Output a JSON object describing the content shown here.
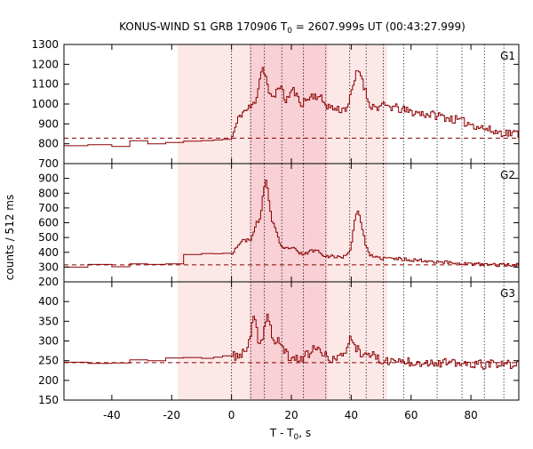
{
  "chart_data": {
    "type": "line",
    "title": "KONUS-WIND S1 GRB 170906 T",
    "title_sub": "0",
    "title_rest": " = 2607.999s UT (00:43:27.999)",
    "xlabel_main": "T - T",
    "xlabel_sub": "0",
    "xlabel_rest": ", s",
    "ylabel": "counts / 512 ms",
    "xlim": [
      -56,
      96
    ],
    "x_ticks": [
      -40,
      -20,
      0,
      20,
      40,
      60,
      80
    ],
    "x_tick_labels": [
      "-40",
      "-20",
      "0",
      "20",
      "40",
      "60",
      "80"
    ],
    "colors": {
      "line": "#8b0000",
      "background_dashed": "#8b0000",
      "shade_light": "#fde8e8",
      "shade_dark": "#f8d0d5",
      "vline": "#000000"
    },
    "shaded_intervals": [
      {
        "from": -18,
        "to": 52,
        "tone": "light"
      },
      {
        "from": 6,
        "to": 32,
        "tone": "dark"
      }
    ],
    "vertical_lines": [
      0,
      6.4,
      11.0,
      16.8,
      24.0,
      31.5,
      39.5,
      45.0,
      50.7,
      57.5,
      68.7,
      77.0,
      84.5,
      91.0
    ],
    "panels": [
      {
        "label": "G1",
        "ylim": [
          700,
          1300
        ],
        "yticks": [
          700,
          800,
          900,
          1000,
          1100,
          1200,
          1300
        ],
        "y_tick_labels": [
          "700",
          "800",
          "900",
          "1000",
          "1100",
          "1200",
          "1300"
        ],
        "background": 828,
        "seed": 11,
        "noise": 22,
        "step_after_zero": 150,
        "hist": [
          [
            -56,
            790
          ],
          [
            -48,
            795
          ],
          [
            -40,
            786
          ],
          [
            -34,
            815
          ],
          [
            -28,
            800
          ],
          [
            -22,
            806
          ],
          [
            -16,
            813
          ],
          [
            -10,
            816
          ],
          [
            -6,
            819
          ],
          [
            -3,
            822
          ]
        ],
        "base": [
          [
            0,
            825
          ],
          [
            3,
            950
          ],
          [
            6,
            980
          ],
          [
            10,
            1010
          ],
          [
            14,
            1010
          ],
          [
            20,
            1000
          ],
          [
            30,
            980
          ],
          [
            38,
            970
          ],
          [
            46,
            980
          ],
          [
            52,
            990
          ],
          [
            60,
            960
          ],
          [
            70,
            940
          ],
          [
            80,
            900
          ],
          [
            88,
            860
          ],
          [
            96,
            850
          ]
        ],
        "peaks": [
          [
            10.5,
            170,
            1.3
          ],
          [
            16,
            90,
            1.0
          ],
          [
            20.5,
            70,
            1.2
          ],
          [
            28,
            60,
            2.5
          ],
          [
            42.5,
            190,
            1.8
          ]
        ]
      },
      {
        "label": "G2",
        "ylim": [
          200,
          1000
        ],
        "yticks": [
          200,
          300,
          400,
          500,
          600,
          700,
          800,
          900
        ],
        "y_tick_labels": [
          "200",
          "300",
          "400",
          "500",
          "600",
          "700",
          "800",
          "900"
        ],
        "background": 315,
        "seed": 23,
        "noise": 12,
        "step_after_zero": 180,
        "hist": [
          [
            -56,
            300
          ],
          [
            -48,
            318
          ],
          [
            -40,
            302
          ],
          [
            -34,
            322
          ],
          [
            -28,
            318
          ],
          [
            -22,
            322
          ],
          [
            -16,
            385
          ],
          [
            -10,
            392
          ],
          [
            -6,
            390
          ],
          [
            -3,
            393
          ]
        ],
        "base": [
          [
            0,
            390
          ],
          [
            3,
            470
          ],
          [
            6,
            490
          ],
          [
            10,
            470
          ],
          [
            14,
            440
          ],
          [
            20,
            390
          ],
          [
            30,
            370
          ],
          [
            38,
            370
          ],
          [
            46,
            360
          ],
          [
            52,
            360
          ],
          [
            60,
            350
          ],
          [
            70,
            335
          ],
          [
            80,
            320
          ],
          [
            88,
            315
          ],
          [
            96,
            315
          ]
        ],
        "peaks": [
          [
            11.5,
            420,
            1.2
          ],
          [
            8.5,
            110,
            0.8
          ],
          [
            14.5,
            120,
            1.0
          ],
          [
            20,
            40,
            1.5
          ],
          [
            28,
            40,
            2.0
          ],
          [
            42,
            280,
            1.3
          ],
          [
            44,
            80,
            1.5
          ]
        ]
      },
      {
        "label": "G3",
        "ylim": [
          150,
          450
        ],
        "yticks": [
          150,
          200,
          250,
          300,
          350,
          400
        ],
        "y_tick_labels": [
          "150",
          "200",
          "250",
          "300",
          "350",
          "400"
        ],
        "background": 245,
        "seed": 37,
        "noise": 12,
        "step_after_zero": 40,
        "hist": [
          [
            -56,
            246
          ],
          [
            -48,
            243
          ],
          [
            -40,
            244
          ],
          [
            -34,
            252
          ],
          [
            -28,
            250
          ],
          [
            -22,
            257
          ],
          [
            -16,
            258
          ],
          [
            -10,
            256
          ],
          [
            -6,
            259
          ],
          [
            -3,
            262
          ]
        ],
        "base": [
          [
            0,
            260
          ],
          [
            3,
            265
          ],
          [
            6,
            275
          ],
          [
            10,
            268
          ],
          [
            14,
            258
          ],
          [
            20,
            255
          ],
          [
            30,
            255
          ],
          [
            38,
            255
          ],
          [
            46,
            252
          ],
          [
            52,
            250
          ],
          [
            60,
            248
          ],
          [
            70,
            245
          ],
          [
            80,
            240
          ],
          [
            88,
            240
          ],
          [
            96,
            240
          ]
        ],
        "peaks": [
          [
            7.5,
            80,
            1.0
          ],
          [
            12,
            100,
            1.2
          ],
          [
            16,
            40,
            1.5
          ],
          [
            28,
            25,
            2.0
          ],
          [
            40,
            50,
            1.5
          ],
          [
            45,
            20,
            2.0
          ]
        ]
      }
    ]
  }
}
